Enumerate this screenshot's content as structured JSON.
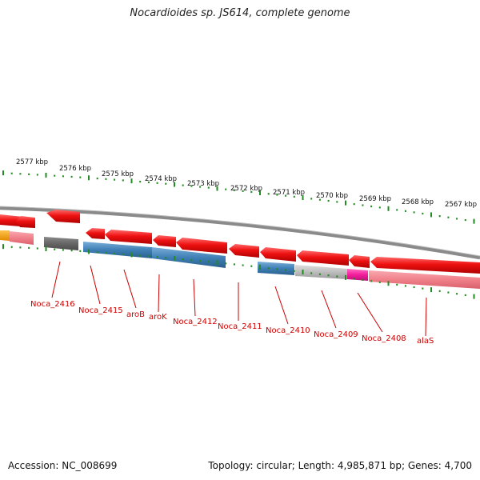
{
  "title": "Nocardioides sp. JS614, complete genome",
  "accession": "Accession: NC_008699",
  "summary": "Topology: circular; Length: 4,985,871 bp; Genes: 4,700",
  "scale_labels": [
    "2577 kbp",
    "2576 kbp",
    "2575 kbp",
    "2574 kbp",
    "2573 kbp",
    "2572 kbp",
    "2571 kbp",
    "2570 kbp",
    "2569 kbp",
    "2568 kbp",
    "2567 kbp"
  ],
  "gene_labels": [
    "Noca_2416",
    "Noca_2415",
    "aroB",
    "aroK",
    "Noca_2412",
    "Noca_2411",
    "Noca_2410",
    "Noca_2409",
    "Noca_2408",
    "alaS"
  ],
  "colors": {
    "cds": "#ee1111",
    "backbone": "#8a8a8a",
    "tick": "#228b22",
    "label": "#cc0000",
    "blue": "#3f7fb5",
    "gray": "#bdbdbd",
    "darkgray": "#6a6a6a",
    "pink": "#f0808a",
    "magenta": "#f21e9c",
    "orange": "#f5a300"
  }
}
